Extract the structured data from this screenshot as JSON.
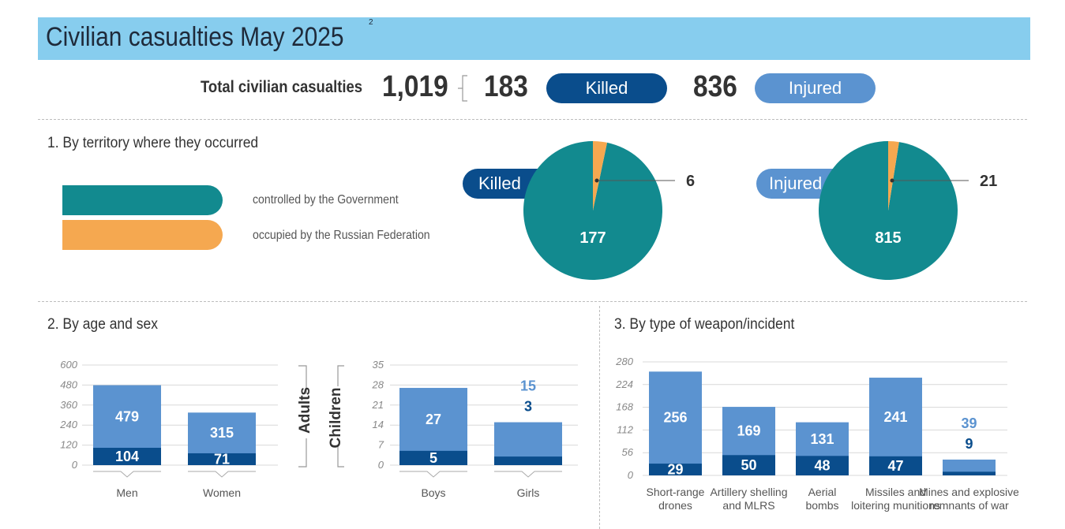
{
  "header": {
    "title": "Civilian casualties May 2025",
    "footnote": "2"
  },
  "totals": {
    "label": "Total civilian casualties",
    "total": "1,019",
    "killed_value": "183",
    "killed_label": "Killed",
    "injured_value": "836",
    "injured_label": "Injured"
  },
  "section1": {
    "title": "1. By territory where they occurred",
    "legend": [
      {
        "label": "controlled by the Government",
        "color": "#128a8f"
      },
      {
        "label": "occupied by the Russian Federation",
        "color": "#f5a850"
      }
    ]
  },
  "section2": {
    "title": "2. By age and sex",
    "adults_label": "Adults",
    "children_label": "Children"
  },
  "section3": {
    "title": "3. By type of weapon/incident"
  },
  "colors": {
    "killed": "#0a4d8c",
    "injured": "#5b93d0",
    "gov": "#128a8f",
    "occ": "#f5a850"
  },
  "chart_data": [
    {
      "type": "pie",
      "name": "Killed",
      "labels": [
        "controlled by the Government",
        "occupied by the Russian Federation"
      ],
      "values": [
        177,
        6
      ]
    },
    {
      "type": "pie",
      "name": "Injured",
      "labels": [
        "controlled by the Government",
        "occupied by the Russian Federation"
      ],
      "values": [
        815,
        21
      ]
    },
    {
      "type": "bar",
      "stacked": true,
      "group": "Adults",
      "categories": [
        "Men",
        "Women"
      ],
      "series": [
        {
          "name": "Killed",
          "values": [
            104,
            71
          ]
        },
        {
          "name": "Injured",
          "values": [
            479,
            315
          ]
        }
      ],
      "yticks": [
        0,
        120,
        240,
        360,
        480,
        600
      ],
      "ylim": [
        0,
        600
      ]
    },
    {
      "type": "bar",
      "stacked": true,
      "group": "Children",
      "categories": [
        "Boys",
        "Girls"
      ],
      "series": [
        {
          "name": "Killed",
          "values": [
            5,
            3
          ]
        },
        {
          "name": "Injured",
          "values": [
            27,
            15
          ]
        }
      ],
      "yticks": [
        0,
        7,
        14,
        21,
        28,
        35
      ],
      "ylim": [
        0,
        35
      ]
    },
    {
      "type": "bar",
      "stacked": true,
      "categories": [
        "Short-range drones",
        "Artillery shelling and MLRS",
        "Aerial bombs",
        "Missiles and loitering munitions",
        "Mines and explosive remnants of war"
      ],
      "category_lines": [
        [
          "Short-range",
          "drones"
        ],
        [
          "Artillery shelling",
          "and MLRS"
        ],
        [
          "Aerial",
          "bombs"
        ],
        [
          "Missiles and",
          "loitering munitions"
        ],
        [
          "Mines and explosive",
          "remnants of war"
        ]
      ],
      "series": [
        {
          "name": "Killed",
          "values": [
            29,
            50,
            48,
            47,
            9
          ]
        },
        {
          "name": "Injured",
          "values": [
            256,
            169,
            131,
            241,
            39
          ]
        }
      ],
      "yticks": [
        0,
        56,
        112,
        168,
        224,
        280
      ],
      "ylim": [
        0,
        280
      ]
    }
  ]
}
